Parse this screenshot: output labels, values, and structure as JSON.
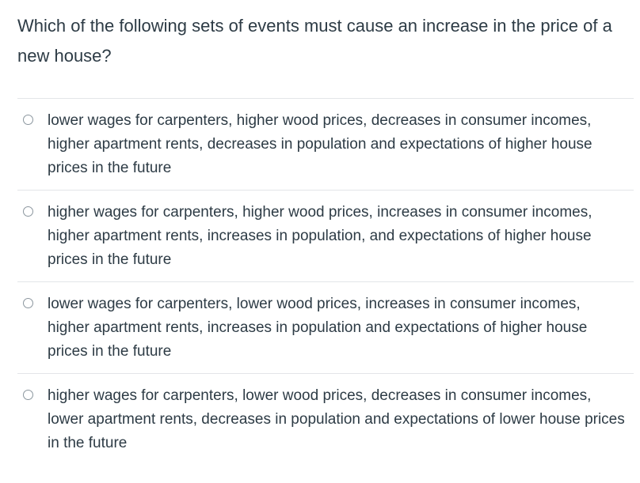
{
  "question": {
    "text": "Which of the following sets of events must cause an increase in the price of a new house?"
  },
  "answers": [
    {
      "label": "lower wages for carpenters, higher wood prices, decreases in consumer incomes, higher apartment rents, decreases in population and expectations of higher house prices in the future",
      "selected": false
    },
    {
      "label": "higher wages for carpenters, higher wood prices, increases in consumer incomes, higher apartment rents, increases in population, and expectations of higher house prices in the future",
      "selected": false
    },
    {
      "label": "lower wages for carpenters, lower wood prices, increases in consumer incomes, higher apartment rents, increases in population and expectations of higher house prices in the future",
      "selected": false
    },
    {
      "label": "higher wages for carpenters, lower wood prices, decreases in consumer incomes, lower apartment rents, decreases in population and expectations of lower house prices in the future",
      "selected": false
    }
  ]
}
